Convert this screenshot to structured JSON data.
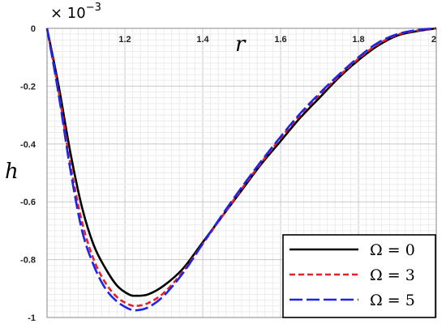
{
  "chart_data": {
    "type": "line",
    "xlabel": "r",
    "ylabel": "h",
    "scale_label": "× 10",
    "scale_exponent": "−3",
    "xlim": [
      1.0,
      2.0
    ],
    "ylim": [
      -1.0,
      0.0
    ],
    "x_ticks": [
      1.2,
      1.4,
      1.6,
      1.8,
      2.0
    ],
    "x_tick_labels": [
      "1.2",
      "1.4",
      "1.6",
      "1.8",
      "2"
    ],
    "y_ticks": [
      0,
      -0.2,
      -0.4,
      -0.6,
      -0.8,
      -1.0
    ],
    "y_tick_labels": [
      "0",
      "-0.2",
      "-0.4",
      "-0.6",
      "-0.8",
      "-1"
    ],
    "grid": true,
    "legend_position": "bottom-right",
    "series": [
      {
        "name": "Ω = 0",
        "color": "#000000",
        "dash": "solid",
        "x": [
          1.0,
          1.03,
          1.06,
          1.09,
          1.12,
          1.15,
          1.18,
          1.21,
          1.23,
          1.26,
          1.3,
          1.35,
          1.4,
          1.45,
          1.5,
          1.55,
          1.6,
          1.65,
          1.7,
          1.75,
          1.8,
          1.85,
          1.9,
          1.95,
          2.0
        ],
        "y": [
          0.0,
          -0.2,
          -0.43,
          -0.62,
          -0.75,
          -0.83,
          -0.89,
          -0.92,
          -0.925,
          -0.92,
          -0.89,
          -0.83,
          -0.74,
          -0.65,
          -0.56,
          -0.47,
          -0.39,
          -0.31,
          -0.24,
          -0.17,
          -0.11,
          -0.06,
          -0.025,
          -0.01,
          0.0
        ]
      },
      {
        "name": "Ω = 3",
        "color": "#e8202a",
        "dash": "short",
        "x": [
          1.0,
          1.03,
          1.06,
          1.09,
          1.12,
          1.15,
          1.18,
          1.21,
          1.23,
          1.26,
          1.3,
          1.35,
          1.4,
          1.45,
          1.5,
          1.55,
          1.6,
          1.65,
          1.7,
          1.75,
          1.8,
          1.85,
          1.9,
          1.95,
          2.0
        ],
        "y": [
          0.0,
          -0.22,
          -0.47,
          -0.67,
          -0.8,
          -0.88,
          -0.93,
          -0.955,
          -0.96,
          -0.95,
          -0.915,
          -0.84,
          -0.745,
          -0.65,
          -0.555,
          -0.465,
          -0.38,
          -0.3,
          -0.23,
          -0.165,
          -0.105,
          -0.055,
          -0.022,
          -0.008,
          0.0
        ]
      },
      {
        "name": "Ω = 5",
        "color": "#1f24e6",
        "dash": "long",
        "x": [
          1.0,
          1.03,
          1.06,
          1.09,
          1.12,
          1.15,
          1.18,
          1.21,
          1.23,
          1.26,
          1.3,
          1.35,
          1.4,
          1.45,
          1.5,
          1.55,
          1.6,
          1.65,
          1.7,
          1.75,
          1.8,
          1.85,
          1.9,
          1.95,
          2.0
        ],
        "y": [
          0.0,
          -0.23,
          -0.49,
          -0.7,
          -0.82,
          -0.9,
          -0.945,
          -0.97,
          -0.975,
          -0.965,
          -0.925,
          -0.845,
          -0.745,
          -0.645,
          -0.55,
          -0.46,
          -0.375,
          -0.295,
          -0.225,
          -0.16,
          -0.1,
          -0.05,
          -0.02,
          -0.006,
          0.0
        ]
      }
    ]
  }
}
